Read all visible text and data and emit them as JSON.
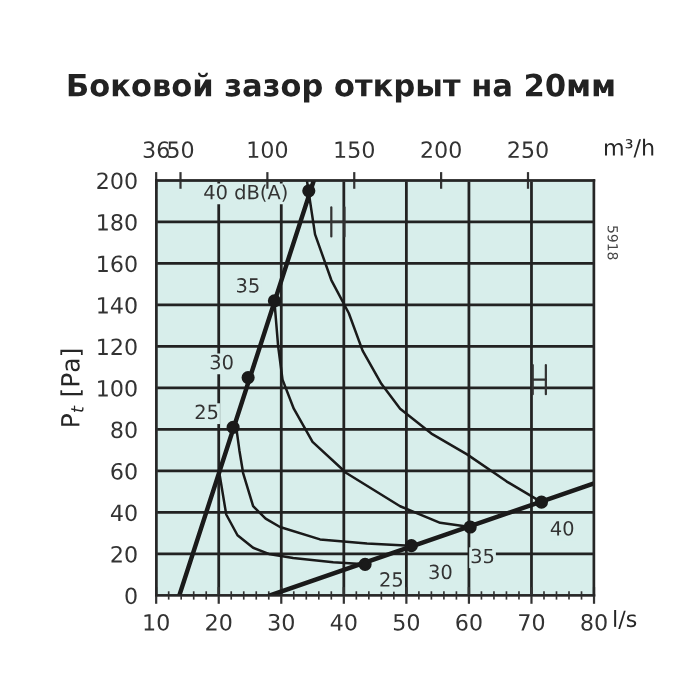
{
  "chart_data": {
    "type": "line",
    "title": "Боковой зазор открыт на 20мм",
    "xlabel": "l/s",
    "ylabel": "P$_{t}$ [Pa]",
    "x2label": "m³/h",
    "xlim": [
      10,
      80
    ],
    "xticks": [
      10,
      20,
      30,
      40,
      50,
      60,
      70,
      80
    ],
    "ylim": [
      0,
      200
    ],
    "yticks": [
      0,
      20,
      40,
      60,
      80,
      100,
      120,
      140,
      160,
      180,
      200
    ],
    "x2lim": [
      36,
      288
    ],
    "x2ticks": [
      36,
      50,
      100,
      150,
      200,
      250
    ],
    "grid": true,
    "line_style": "solid",
    "series": [
      {
        "color": "#1a1a1a",
        "x": [
          13.7,
          35.2
        ],
        "values": [
          0,
          200
        ]
      },
      {
        "color": "#1a1a1a",
        "x": [
          28.2,
          80
        ],
        "values": [
          0,
          54
        ]
      },
      {
        "color": "#1a1a1a",
        "x": [
          20.1,
          21.2,
          23,
          25.5,
          28,
          31.9,
          38.3,
          43.4
        ],
        "values": [
          59,
          39,
          29,
          23,
          20,
          18,
          16,
          15
        ]
      },
      {
        "color": "#1a1a1a",
        "x": [
          22.8,
          23.3,
          23.9,
          25.5,
          27.5,
          29.8,
          36.2,
          43.7,
          50.6
        ],
        "values": [
          81,
          70,
          59,
          43,
          37,
          33,
          27,
          25,
          24
        ]
      },
      {
        "color": "#1a1a1a",
        "x": [
          28.9,
          29.5,
          30.2,
          32,
          35,
          40.4,
          49,
          55.4,
          60.2
        ],
        "values": [
          142,
          120,
          104,
          90,
          74,
          59,
          43,
          35,
          33
        ]
      },
      {
        "color": "#1a1a1a",
        "x": [
          34.1,
          35.4,
          38,
          40.8,
          43,
          46,
          49,
          54,
          59.7,
          66,
          71.6
        ],
        "values": [
          200,
          174,
          152,
          136,
          118,
          102,
          90,
          78,
          68,
          55,
          45
        ]
      },
      {
        "type": "scatter",
        "color": "#1a1a1a",
        "x": [
          22.3,
          24.7,
          28.9,
          34.4
        ],
        "values": [
          81,
          105,
          142,
          195
        ]
      },
      {
        "type": "scatter",
        "color": "#1a1a1a",
        "x": [
          43.4,
          50.8,
          60.2,
          71.6
        ],
        "values": [
          15,
          24,
          33,
          45
        ]
      }
    ],
    "annotations": [
      {
        "text": "25",
        "x": 22.3,
        "y": 81
      },
      {
        "text": "30",
        "x": 24.7,
        "y": 105
      },
      {
        "text": "35",
        "x": 28.9,
        "y": 142
      },
      {
        "text": "40 dB(A)",
        "x": 34.4,
        "y": 195
      },
      {
        "text": "25",
        "x": 43.4,
        "y": 15
      },
      {
        "text": "30",
        "x": 50.8,
        "y": 24
      },
      {
        "text": "35",
        "x": 60.2,
        "y": 33
      },
      {
        "text": "40",
        "x": 71.6,
        "y": 45
      },
      "5918"
    ]
  }
}
